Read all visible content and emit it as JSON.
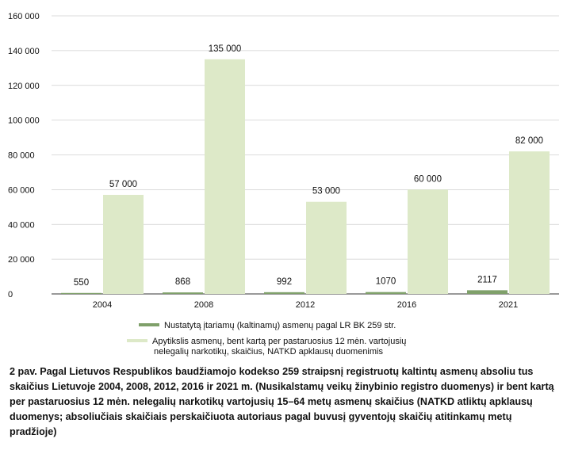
{
  "chart_data": {
    "type": "bar",
    "categories": [
      "2004",
      "2008",
      "2012",
      "2016",
      "2021"
    ],
    "series": [
      {
        "name": "Nustatytą įtariamų (kaltinamų) asmenų pagal LR BK 259 str.",
        "values": [
          550,
          868,
          992,
          1070,
          2117
        ],
        "labels": [
          "550",
          "868",
          "992",
          "1070",
          "2117"
        ],
        "color": "#7fa06a"
      },
      {
        "name": "Apytikslis asmenų, bent kartą per pastaruosius 12 mėn. vartojusių nelegalių narkotikų, skaičius, NATKD apklausų duomenimis",
        "name_lines": [
          "Apytikslis asmenų, bent kartą per pastaruosius 12 mėn. vartojusių",
          "nelegalių narkotikų, skaičius, NATKD apklausų duomenimis"
        ],
        "values": [
          57000,
          135000,
          53000,
          60000,
          82000
        ],
        "labels": [
          "57 000",
          "135 000",
          "53 000",
          "60 000",
          "82 000"
        ],
        "color": "#dde9c8"
      }
    ],
    "ylim": [
      0,
      160000
    ],
    "yticks": [
      0,
      20000,
      40000,
      60000,
      80000,
      100000,
      120000,
      140000,
      160000
    ],
    "ytick_labels": [
      "0",
      "20 000",
      "40 000",
      "60 000",
      "80 000",
      "100 000",
      "120 000",
      "140 000",
      "160 000"
    ],
    "grid": true,
    "legend_position": "bottom",
    "xlabel": "",
    "ylabel": ""
  },
  "caption": "2 pav. Pagal Lietuvos Respublikos baudžiamojo kodekso 259 straipsnį registruotų kaltintų asmenų absoliu tus skaičius Lietuvoje 2004, 2008, 2012, 2016 ir 2021 m. (Nusikalstamų veikų žinybinio registro duomenys) ir bent kartą per pastaruosius 12 mėn. nelegalių narkotikų vartojusių 15–64 metų asmenų skaičius (NATKD atliktų apklausų duomenys; absoliučiais skaičiais perskaičiuota autoriaus pagal buvusį gyventojų skaičių atitinkamų metų pradžioje)"
}
